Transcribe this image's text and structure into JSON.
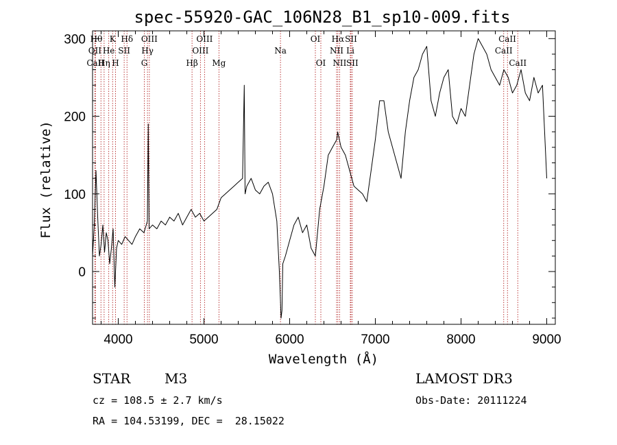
{
  "chart_data": {
    "type": "line",
    "title": "spec-55920-GAC_106N28_B1_sp10-009.fits",
    "xlabel": "Wavelength (Å)",
    "ylabel": "Flux (relative)",
    "xlim": [
      3700,
      9100
    ],
    "ylim": [
      -68,
      310
    ],
    "x_ticks": [
      4000,
      5000,
      6000,
      7000,
      8000,
      9000
    ],
    "y_ticks": [
      0,
      100,
      200,
      300
    ],
    "x_tick_labels": [
      "4000",
      "5000",
      "6000",
      "7000",
      "8000",
      "9000"
    ],
    "y_tick_labels": [
      "0",
      "100",
      "200",
      "300"
    ],
    "grid": false,
    "series": [
      {
        "name": "spectrum",
        "x": [
          3700,
          3720,
          3740,
          3760,
          3780,
          3800,
          3820,
          3840,
          3860,
          3880,
          3900,
          3920,
          3940,
          3960,
          3980,
          4000,
          4040,
          4080,
          4120,
          4160,
          4200,
          4250,
          4300,
          4340,
          4350,
          4360,
          4400,
          4450,
          4500,
          4550,
          4600,
          4650,
          4700,
          4750,
          4800,
          4850,
          4900,
          4950,
          5000,
          5050,
          5100,
          5150,
          5200,
          5250,
          5300,
          5350,
          5400,
          5450,
          5470,
          5480,
          5500,
          5550,
          5600,
          5650,
          5700,
          5750,
          5800,
          5850,
          5880,
          5900,
          5910,
          5920,
          5950,
          6000,
          6050,
          6100,
          6150,
          6200,
          6250,
          6300,
          6350,
          6400,
          6450,
          6500,
          6550,
          6560,
          6600,
          6650,
          6700,
          6750,
          6800,
          6850,
          6900,
          6950,
          7000,
          7050,
          7100,
          7150,
          7200,
          7250,
          7300,
          7350,
          7400,
          7450,
          7500,
          7550,
          7600,
          7650,
          7700,
          7750,
          7800,
          7850,
          7900,
          7950,
          8000,
          8050,
          8100,
          8150,
          8200,
          8250,
          8300,
          8350,
          8400,
          8450,
          8500,
          8550,
          8600,
          8650,
          8700,
          8750,
          8800,
          8850,
          8900,
          8950,
          9000
        ],
        "y": [
          20,
          60,
          130,
          70,
          20,
          35,
          60,
          25,
          50,
          40,
          10,
          30,
          55,
          -20,
          30,
          40,
          35,
          45,
          40,
          35,
          45,
          55,
          50,
          65,
          190,
          55,
          60,
          55,
          65,
          60,
          70,
          65,
          75,
          60,
          70,
          80,
          70,
          75,
          65,
          70,
          75,
          80,
          95,
          100,
          105,
          110,
          115,
          120,
          240,
          100,
          110,
          120,
          105,
          100,
          110,
          115,
          100,
          65,
          0,
          -60,
          -50,
          10,
          20,
          40,
          60,
          70,
          50,
          60,
          30,
          20,
          80,
          110,
          150,
          160,
          170,
          180,
          160,
          150,
          130,
          110,
          105,
          100,
          90,
          130,
          170,
          220,
          220,
          180,
          160,
          140,
          120,
          180,
          220,
          250,
          260,
          280,
          290,
          220,
          200,
          230,
          250,
          260,
          200,
          190,
          210,
          200,
          240,
          280,
          300,
          290,
          280,
          260,
          250,
          240,
          260,
          250,
          230,
          240,
          260,
          230,
          220,
          250,
          230,
          240,
          120
        ]
      }
    ],
    "lines": [
      {
        "name": "CaII K",
        "x": 3734
      },
      {
        "name": "OII",
        "x": 3727
      },
      {
        "name": "H theta",
        "x": 3798
      },
      {
        "name": "H eta",
        "x": 3835
      },
      {
        "name": "He",
        "x": 3889
      },
      {
        "name": "K",
        "x": 3934
      },
      {
        "name": "H",
        "x": 3968
      },
      {
        "name": "SII",
        "x": 4069
      },
      {
        "name": "H delta",
        "x": 4102
      },
      {
        "name": "G",
        "x": 4304
      },
      {
        "name": "H gamma",
        "x": 4341
      },
      {
        "name": "OIII 4363",
        "x": 4363
      },
      {
        "name": "H beta",
        "x": 4861
      },
      {
        "name": "OIII 4959",
        "x": 4959
      },
      {
        "name": "OIII 5007",
        "x": 5007
      },
      {
        "name": "Mg",
        "x": 5175
      },
      {
        "name": "Na",
        "x": 5893
      },
      {
        "name": "OI 6300",
        "x": 6300
      },
      {
        "name": "OI 6364",
        "x": 6364
      },
      {
        "name": "NII 6548",
        "x": 6548
      },
      {
        "name": "H alpha",
        "x": 6563
      },
      {
        "name": "NII 6583",
        "x": 6583
      },
      {
        "name": "Li",
        "x": 6708
      },
      {
        "name": "SII 6716",
        "x": 6716
      },
      {
        "name": "SII 6731",
        "x": 6731
      },
      {
        "name": "CaII 8498",
        "x": 8498
      },
      {
        "name": "CaII 8542",
        "x": 8542
      },
      {
        "name": "CaII 8662",
        "x": 8662
      }
    ],
    "line_labels": {
      "h_theta": "Hθ",
      "oii": "OII",
      "ca_ii_left": "CaII",
      "k": "K",
      "he": "He",
      "h_eta": "Hη",
      "h": "H",
      "s_ii_blue": "SII",
      "h_delta": "Hδ",
      "o_iii_4363": "OIII",
      "h_gamma": "Hγ",
      "g": "G",
      "o_iii_4959": "OIII",
      "o_iii_5007": "OIII",
      "h_beta": "Hβ",
      "mg": "Mg",
      "na": "Na",
      "oi_1": "OI",
      "oi_2": "OI",
      "h_alpha": "Hα",
      "nii_1": "NII",
      "nii_2": "NII",
      "sii_1": "SII",
      "li": "Li",
      "sii_2": "SII",
      "ca_ii_1": "CaII",
      "ca_ii_2": "CaII",
      "ca_ii_3": "CaII"
    }
  },
  "info": {
    "object_class": "STAR",
    "subclass": "M3",
    "survey": "LAMOST DR3",
    "redshift": "cz = 108.5 ± 2.7 km/s",
    "obs_date": "Obs-Date: 20111224",
    "coords": "RA = 104.53199, DEC =  28.15022"
  },
  "colors": {
    "line": "#000000",
    "marker": "#b22222",
    "background": "#ffffff"
  }
}
